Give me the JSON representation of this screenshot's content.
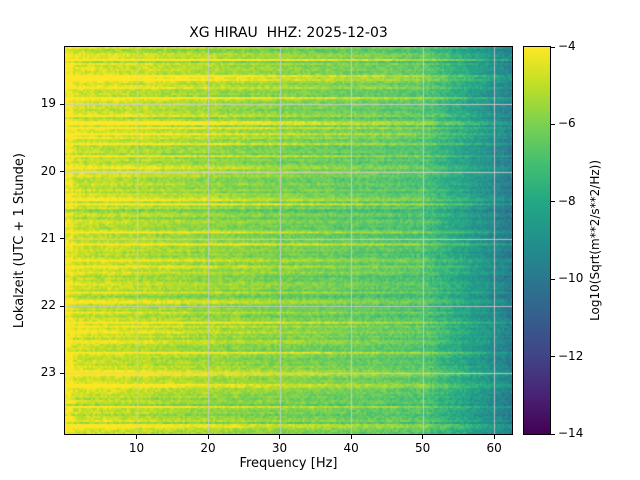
{
  "figure": {
    "background": "#ffffff",
    "text_color": "#000000"
  },
  "chart_data": {
    "type": "heatmap",
    "subtype": "spectrogram",
    "title": "XG HIRAU  HHZ: 2025-12-03",
    "xlabel": "Frequency [Hz]",
    "ylabel": "Lokalzeit (UTC + 1 Stunde)",
    "colorbar_label": "Log10(Sqrt(m**2/s**2/Hz))",
    "x_range": [
      0,
      62.5
    ],
    "x_ticks": [
      10,
      20,
      30,
      40,
      50,
      60
    ],
    "y_range": [
      18.15,
      23.9
    ],
    "y_ticks": [
      19,
      20,
      21,
      22,
      23
    ],
    "color_range": [
      -14,
      -4
    ],
    "colorbar_ticks": [
      -4,
      -6,
      -8,
      -10,
      -12,
      -14
    ],
    "grid": true,
    "grid_color": "#cccccc",
    "colormap": {
      "name": "viridis",
      "stops": [
        {
          "t": 0.0,
          "c": "#440154"
        },
        {
          "t": 0.1,
          "c": "#482475"
        },
        {
          "t": 0.2,
          "c": "#414487"
        },
        {
          "t": 0.3,
          "c": "#355f8d"
        },
        {
          "t": 0.4,
          "c": "#2a788e"
        },
        {
          "t": 0.5,
          "c": "#21918c"
        },
        {
          "t": 0.6,
          "c": "#22a884"
        },
        {
          "t": 0.7,
          "c": "#44bf70"
        },
        {
          "t": 0.8,
          "c": "#7ad151"
        },
        {
          "t": 0.9,
          "c": "#bddf26"
        },
        {
          "t": 1.0,
          "c": "#fde725"
        }
      ]
    },
    "spectrum_model": {
      "seed": 1337421,
      "low_freq_cutoff_hz": 1.0,
      "low_freq_peak_db": -4.3,
      "base_db_at_0": -4.85,
      "slope_db_per_hz": -0.042,
      "highfreq_rolloff_start_hz": 50,
      "highfreq_rolloff_db_per_hz": -0.2,
      "noise_db": 0.55,
      "time_trend_db": 0.4,
      "band_probability": 0.22,
      "band_boost_db_min": 0.6,
      "band_boost_db_max": 2.0,
      "dark_row_probability": 0.1,
      "band_highfreq_fade": 0.45
    }
  }
}
